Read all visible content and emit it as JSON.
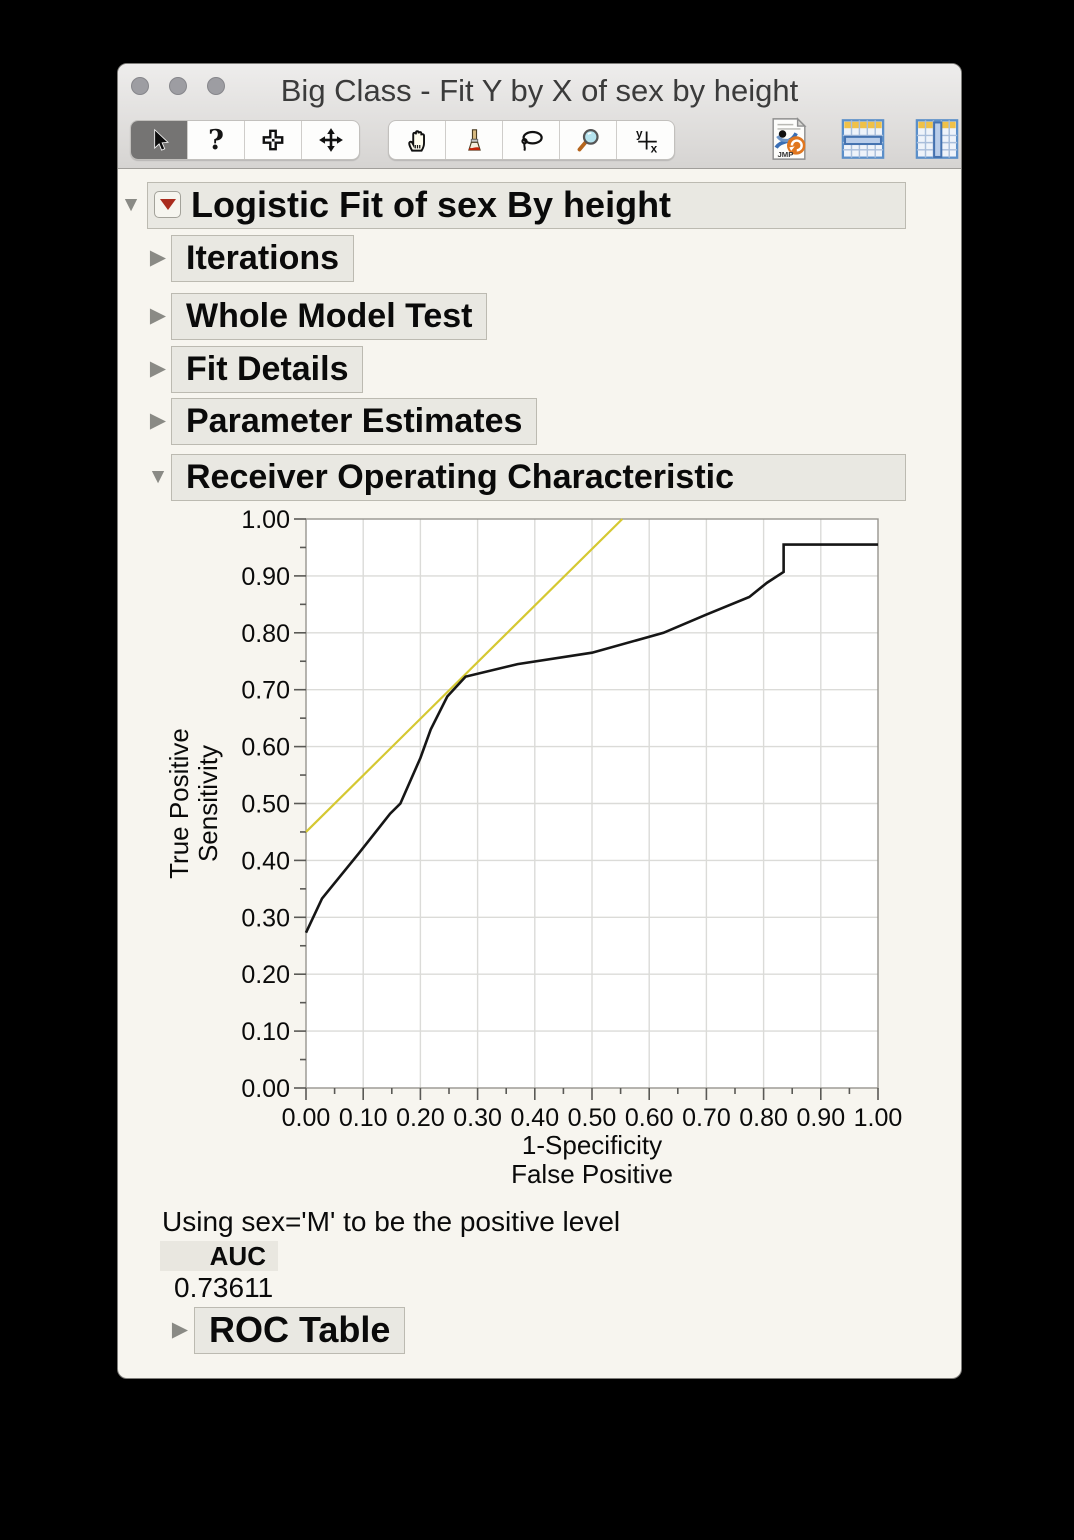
{
  "window": {
    "title": "Big Class - Fit Y by X of sex by height"
  },
  "toolbar": {
    "tools": [
      {
        "name": "arrow-tool",
        "selected": true
      },
      {
        "name": "help-tool",
        "selected": false,
        "glyph": "?"
      },
      {
        "name": "crosshair-tool",
        "selected": false
      },
      {
        "name": "grabber-move-tool",
        "selected": false
      },
      {
        "name": "hand-tool",
        "selected": false
      },
      {
        "name": "brush-tool",
        "selected": false
      },
      {
        "name": "lasso-tool",
        "selected": false
      },
      {
        "name": "magnifier-tool",
        "selected": false
      },
      {
        "name": "annotate-axes-tool",
        "selected": false,
        "glyph_top": "y",
        "glyph_bottom": "x"
      }
    ],
    "right_icons": [
      "jmp-journal-icon",
      "data-table-row-icon",
      "data-table-column-icon"
    ]
  },
  "outline": {
    "root": {
      "label": "Logistic Fit of sex By height",
      "expanded": true,
      "has_menu": true
    },
    "sections": [
      {
        "label": "Iterations",
        "expanded": false
      },
      {
        "label": "Whole Model Test",
        "expanded": false
      },
      {
        "label": "Fit Details",
        "expanded": false
      },
      {
        "label": "Parameter Estimates",
        "expanded": false
      },
      {
        "label": "Receiver Operating Characteristic",
        "expanded": true
      }
    ]
  },
  "chart_data": {
    "type": "line",
    "title": "Receiver Operating Characteristic",
    "xlabel": "1-Specificity",
    "xlabel2": "False Positive",
    "ylabel": "True Positive",
    "ylabel2": "Sensitivity",
    "xlim": [
      0.0,
      1.0
    ],
    "ylim": [
      0.0,
      1.0
    ],
    "x_ticks": [
      0,
      0.1,
      0.2,
      0.3,
      0.4,
      0.5,
      0.6,
      0.7,
      0.8,
      0.9,
      1
    ],
    "y_ticks": [
      0,
      0.1,
      0.2,
      0.3,
      0.4,
      0.5,
      0.6,
      0.7,
      0.8,
      0.9,
      1
    ],
    "tick_decimals": 2,
    "minor_tick_step": 0.05,
    "grid": true,
    "legend": "none",
    "series": [
      {
        "name": "reference line slope 1",
        "color": "#d5c832",
        "width": 2.2,
        "points": [
          [
            0,
            0.45
          ],
          [
            0.553,
            1.0
          ]
        ]
      },
      {
        "name": "ROC curve",
        "color": "#161616",
        "width": 2.6,
        "points": [
          [
            0,
            0.273
          ],
          [
            0.028,
            0.333
          ],
          [
            0.092,
            0.412
          ],
          [
            0.147,
            0.482
          ],
          [
            0.165,
            0.5
          ],
          [
            0.2,
            0.58
          ],
          [
            0.218,
            0.63
          ],
          [
            0.247,
            0.688
          ],
          [
            0.279,
            0.723
          ],
          [
            0.37,
            0.745
          ],
          [
            0.5,
            0.765
          ],
          [
            0.625,
            0.8
          ],
          [
            0.7,
            0.832
          ],
          [
            0.775,
            0.863
          ],
          [
            0.806,
            0.888
          ],
          [
            0.835,
            0.907
          ],
          [
            0.835,
            0.955
          ],
          [
            1.0,
            0.955
          ]
        ]
      }
    ]
  },
  "footer": {
    "positive_level_note": "Using sex='M' to be the positive level",
    "auc_label": "AUC",
    "auc_value": "0.73611",
    "roc_table_label": "ROC Table"
  }
}
